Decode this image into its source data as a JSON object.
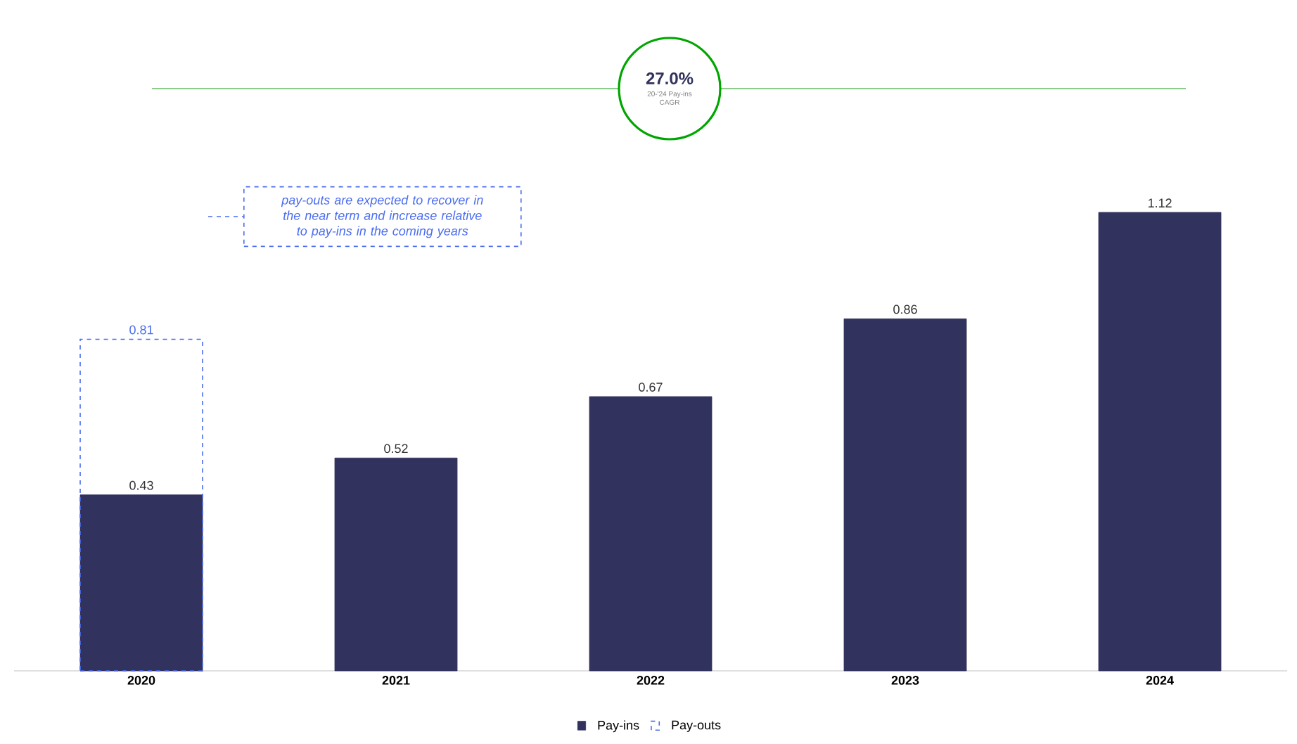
{
  "chart_data": {
    "type": "bar",
    "categories": [
      "2020",
      "2021",
      "2022",
      "2023",
      "2024"
    ],
    "series": [
      {
        "name": "Pay-ins",
        "color": "#32325e",
        "values": [
          0.43,
          0.52,
          0.67,
          0.86,
          1.12
        ]
      },
      {
        "name": "Pay-outs",
        "color": "#4a6cf0",
        "line_style": "dashed",
        "values": [
          0.81,
          null,
          null,
          null,
          null
        ]
      }
    ],
    "data_labels": true,
    "legend": "bottom",
    "grid": false,
    "annotations": [
      "27.0%",
      "20-'24 Pay-ins CAGR",
      "pay-outs are expected to recover in the near term and increase relative to pay-ins in the coming years"
    ]
  }
}
